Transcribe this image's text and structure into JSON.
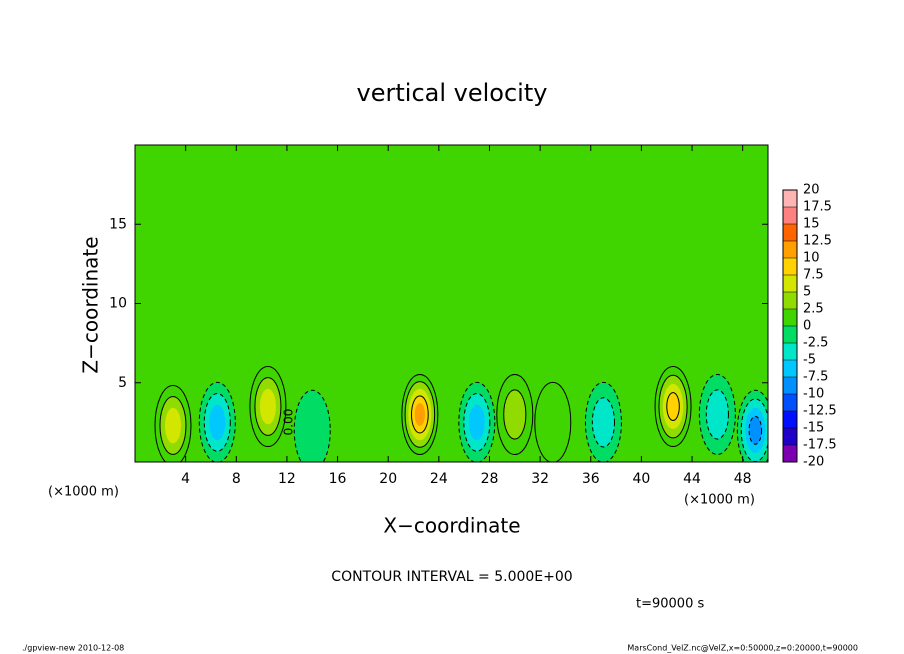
{
  "chart_data": {
    "type": "contour",
    "title": "vertical velocity",
    "x_label": "X−coordinate",
    "y_label": "Z−coordinate",
    "x_unit": "(×1000 m)",
    "x_unit_right": "(×1000 m)",
    "contour_interval": "CONTOUR INTERVAL = 5.000E+00",
    "time": "t=90000 s",
    "footer_left": "./gpview-new  2010-12-08",
    "footer_right": "MarsCond_VelZ.nc@VelZ,x=0:50000,z=0:20000,t=90000",
    "contour_label": "0.00",
    "xlim": [
      0,
      50
    ],
    "ylim": [
      0,
      20
    ],
    "xticks": [
      4,
      8,
      12,
      16,
      20,
      24,
      28,
      32,
      36,
      40,
      44,
      48
    ],
    "yticks": [
      5,
      10,
      15
    ],
    "colorbar_levels": [
      20,
      17.5,
      15,
      12.5,
      10,
      7.5,
      5,
      2.5,
      0,
      -2.5,
      -5,
      -7.5,
      -10,
      -12.5,
      -15,
      -17.5,
      -20
    ],
    "colorbar_colors": [
      "#ffb4b4",
      "#ff8080",
      "#ff6400",
      "#ffa000",
      "#ffd200",
      "#d2e600",
      "#90dc00",
      "#40d400",
      "#00dc64",
      "#00e6c8",
      "#00c8ff",
      "#0090ff",
      "#0050ff",
      "#0010ff",
      "#2000c8",
      "#7a00b0"
    ],
    "field": [
      {
        "x": 3,
        "z": 2.3,
        "value": 7.5
      },
      {
        "x": 6.5,
        "z": 2.5,
        "value": -7.5
      },
      {
        "x": 10.5,
        "z": 3.5,
        "value": 7.5
      },
      {
        "x": 14,
        "z": 2,
        "value": -2.5
      },
      {
        "x": 22.5,
        "z": 3,
        "value": 12.5
      },
      {
        "x": 27,
        "z": 2.5,
        "value": -7.5
      },
      {
        "x": 30,
        "z": 3,
        "value": 5
      },
      {
        "x": 33,
        "z": 2.5,
        "value": 2.5
      },
      {
        "x": 37,
        "z": 2.5,
        "value": -5
      },
      {
        "x": 42.5,
        "z": 3.5,
        "value": 10
      },
      {
        "x": 46,
        "z": 3,
        "value": -5
      },
      {
        "x": 49,
        "z": 2,
        "value": -10
      }
    ]
  }
}
